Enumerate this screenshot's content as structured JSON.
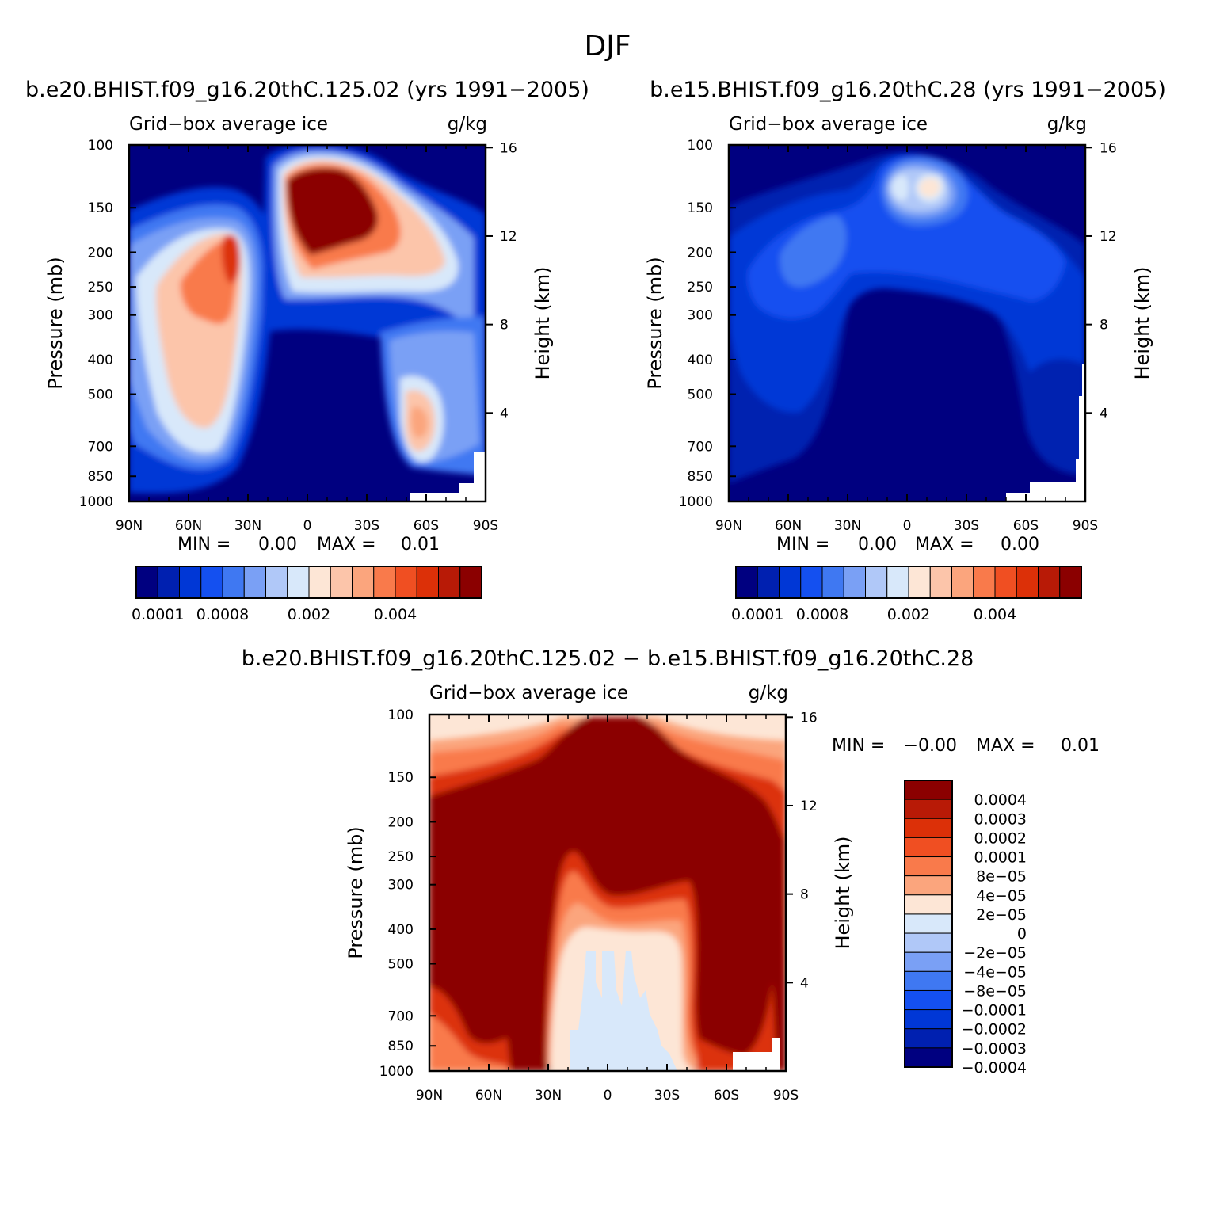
{
  "figure_title": "DJF",
  "colors": {
    "abs_scale": [
      "#000080",
      "#0020b0",
      "#0037d6",
      "#1450f0",
      "#3f78f2",
      "#7aa0f5",
      "#b0c8f8",
      "#d8e8fa",
      "#fde6d6",
      "#fcc5aa",
      "#fba57d",
      "#f97a4b",
      "#f04f22",
      "#dc3008",
      "#b81a06",
      "#8b0000"
    ],
    "diff_scale": [
      "#8b0000",
      "#b81a06",
      "#dc3008",
      "#f04f22",
      "#f97a4b",
      "#fba57d",
      "#fde6d6",
      "#d8e8fa",
      "#b0c8f8",
      "#7aa0f5",
      "#3f78f2",
      "#1450f0",
      "#0037d6",
      "#0020b0",
      "#000080"
    ]
  },
  "chart_data": [
    {
      "type": "heatmap",
      "title": "b.e20.BHIST.f09_g16.20thC.125.02 (yrs 1991−2005)",
      "left_string": "Grid−box average ice",
      "right_string": "g/kg",
      "ylabel": "Pressure (mb)",
      "ylabel_right": "Height (km)",
      "xticks": [
        "90N",
        "60N",
        "30N",
        "0",
        "30S",
        "60S",
        "90S"
      ],
      "yticks": [
        "100",
        "150",
        "200",
        "250",
        "300",
        "400",
        "500",
        "700",
        "850",
        "1000"
      ],
      "height_ticks": [
        "16",
        "12",
        "8",
        "4"
      ],
      "min_label": "MIN =",
      "min_value": "0.00",
      "max_label": "MAX =",
      "max_value": "0.01",
      "colorbar_labels": [
        "0.0001",
        "0.0008",
        "0.002",
        "0.004"
      ]
    },
    {
      "type": "heatmap",
      "title": "b.e15.BHIST.f09_g16.20thC.28 (yrs 1991−2005)",
      "left_string": "Grid−box average ice",
      "right_string": "g/kg",
      "ylabel": "Pressure (mb)",
      "ylabel_right": "Height (km)",
      "xticks": [
        "90N",
        "60N",
        "30N",
        "0",
        "30S",
        "60S",
        "90S"
      ],
      "yticks": [
        "100",
        "150",
        "200",
        "250",
        "300",
        "400",
        "500",
        "700",
        "850",
        "1000"
      ],
      "height_ticks": [
        "16",
        "12",
        "8",
        "4"
      ],
      "min_label": "MIN =",
      "min_value": "0.00",
      "max_label": "MAX =",
      "max_value": "0.00",
      "colorbar_labels": [
        "0.0001",
        "0.0008",
        "0.002",
        "0.004"
      ]
    },
    {
      "type": "heatmap",
      "title": "b.e20.BHIST.f09_g16.20thC.125.02 − b.e15.BHIST.f09_g16.20thC.28",
      "left_string": "Grid−box average ice",
      "right_string": "g/kg",
      "ylabel": "Pressure (mb)",
      "ylabel_right": "Height (km)",
      "xticks": [
        "90N",
        "60N",
        "30N",
        "0",
        "30S",
        "60S",
        "90S"
      ],
      "yticks": [
        "100",
        "150",
        "200",
        "250",
        "300",
        "400",
        "500",
        "700",
        "850",
        "1000"
      ],
      "height_ticks": [
        "16",
        "12",
        "8",
        "4"
      ],
      "min_label": "MIN =",
      "min_value": "−0.00",
      "max_label": "MAX =",
      "max_value": "0.01",
      "colorbar_labels": [
        "0.0004",
        "0.0003",
        "0.0002",
        "0.0001",
        "8e−05",
        "4e−05",
        "2e−05",
        "0",
        "−2e−05",
        "−4e−05",
        "−8e−05",
        "−0.0001",
        "−0.0002",
        "−0.0003",
        "−0.0004"
      ]
    }
  ]
}
